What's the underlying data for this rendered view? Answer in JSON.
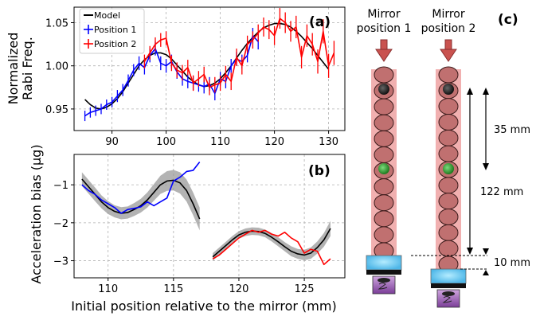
{
  "figure": {
    "panel_a_label": "(a)",
    "panel_b_label": "(b)",
    "panel_c_label": "(c)",
    "shared_xlabel": "Initial position relative to the mirror (mm)"
  },
  "chart_data": [
    {
      "type": "line",
      "panel": "(a)",
      "ylabel_line1": "Normalized",
      "ylabel_line2": "Rabi Freq.",
      "xlim": [
        83,
        133
      ],
      "ylim": [
        0.925,
        1.068
      ],
      "xticks": [
        90,
        100,
        110,
        120,
        130
      ],
      "yticks": [
        0.95,
        1.0,
        1.05
      ],
      "ytick_labels": [
        "0.95",
        "1.00",
        "1.05"
      ],
      "grid": true,
      "legend": {
        "placement": "top-left",
        "entries": [
          "Model",
          "Position 1",
          "Position 2"
        ]
      },
      "series": [
        {
          "name": "Model",
          "color": "#000000",
          "style": "line",
          "x": [
            85,
            86,
            87,
            88,
            89,
            90,
            91,
            92,
            93,
            94,
            95,
            96,
            97,
            98,
            99,
            100,
            101,
            102,
            103,
            104,
            105,
            106,
            107,
            108,
            109,
            110,
            111,
            112,
            113,
            114,
            115,
            116,
            117,
            118,
            119,
            120,
            121,
            122,
            123,
            124,
            125,
            126,
            127,
            128,
            129,
            130
          ],
          "y": [
            0.961,
            0.955,
            0.951,
            0.95,
            0.952,
            0.956,
            0.962,
            0.97,
            0.98,
            0.99,
            1.0,
            1.007,
            1.012,
            1.015,
            1.015,
            1.013,
            1.008,
            1.001,
            0.994,
            0.987,
            0.982,
            0.978,
            0.976,
            0.977,
            0.98,
            0.985,
            0.992,
            1.0,
            1.009,
            1.018,
            1.026,
            1.033,
            1.039,
            1.044,
            1.047,
            1.049,
            1.049,
            1.048,
            1.045,
            1.04,
            1.034,
            1.027,
            1.02,
            1.012,
            1.004,
            0.996
          ]
        },
        {
          "name": "Position 1",
          "color": "#0000ff",
          "style": "errorbar",
          "x": [
            85,
            86,
            87,
            88,
            89,
            90,
            91,
            92,
            93,
            94,
            95,
            96,
            97,
            98,
            99,
            100,
            101,
            102,
            103,
            104,
            105,
            106,
            107,
            108,
            109,
            110,
            111,
            112,
            113,
            114,
            115,
            116,
            117
          ],
          "y": [
            0.942,
            0.946,
            0.948,
            0.95,
            0.955,
            0.958,
            0.965,
            0.972,
            0.983,
            0.995,
            1.003,
            0.998,
            1.012,
            1.02,
            1.003,
            1.0,
            1.005,
            0.993,
            0.985,
            0.982,
            0.98,
            0.978,
            0.976,
            0.979,
            0.968,
            0.985,
            0.982,
            1.0,
            1.008,
            1.005,
            1.012,
            1.035,
            1.028
          ],
          "err": [
            0.006,
            0.006,
            0.006,
            0.006,
            0.006,
            0.006,
            0.007,
            0.007,
            0.007,
            0.007,
            0.008,
            0.008,
            0.008,
            0.008,
            0.008,
            0.008,
            0.008,
            0.008,
            0.008,
            0.008,
            0.008,
            0.008,
            0.008,
            0.008,
            0.008,
            0.008,
            0.008,
            0.008,
            0.008,
            0.008,
            0.008,
            0.009,
            0.009
          ]
        },
        {
          "name": "Position 2",
          "color": "#ff0000",
          "style": "errorbar",
          "x": [
            96,
            97,
            98,
            99,
            100,
            101,
            102,
            103,
            104,
            105,
            106,
            107,
            108,
            109,
            110,
            111,
            112,
            113,
            114,
            115,
            116,
            117,
            118,
            119,
            120,
            121,
            122,
            123,
            124,
            125,
            126,
            127,
            128,
            129,
            130,
            131
          ],
          "y": [
            1.005,
            1.015,
            1.025,
            1.03,
            1.032,
            1.003,
            0.995,
            0.992,
            0.998,
            0.98,
            0.985,
            0.99,
            0.975,
            0.978,
            0.98,
            0.99,
            0.982,
            1.01,
            1.0,
            1.025,
            1.03,
            1.038,
            1.045,
            1.042,
            1.035,
            1.055,
            1.05,
            1.04,
            1.045,
            1.01,
            1.035,
            1.025,
            1.005,
            1.04,
            1.0,
            1.015
          ],
          "err": [
            0.008,
            0.008,
            0.008,
            0.008,
            0.008,
            0.009,
            0.009,
            0.009,
            0.009,
            0.009,
            0.009,
            0.009,
            0.009,
            0.009,
            0.009,
            0.01,
            0.01,
            0.01,
            0.01,
            0.01,
            0.01,
            0.01,
            0.011,
            0.011,
            0.011,
            0.012,
            0.012,
            0.012,
            0.013,
            0.013,
            0.013,
            0.013,
            0.014,
            0.014,
            0.014,
            0.014
          ]
        }
      ]
    },
    {
      "type": "line",
      "panel": "(b)",
      "ylabel": "Acceleration bias (µg)",
      "xlim": [
        107.4,
        128.1
      ],
      "ylim": [
        -3.45,
        -0.2
      ],
      "xticks": [
        110,
        115,
        120,
        125
      ],
      "yticks": [
        -1,
        -2,
        -3
      ],
      "ytick_labels": [
        "−1",
        "−2",
        "−3"
      ],
      "grid": true,
      "series": [
        {
          "name": "Model segment 1",
          "color": "#000000",
          "band_color": "#999999",
          "style": "line-with-band",
          "x": [
            108,
            108.5,
            109,
            109.5,
            110,
            110.5,
            111,
            111.5,
            112,
            112.5,
            113,
            113.5,
            114,
            114.5,
            115,
            115.5,
            116,
            116.5,
            117
          ],
          "y": [
            -0.85,
            -1.05,
            -1.25,
            -1.45,
            -1.6,
            -1.7,
            -1.75,
            -1.73,
            -1.65,
            -1.55,
            -1.4,
            -1.2,
            -1.0,
            -0.9,
            -0.88,
            -0.95,
            -1.15,
            -1.5,
            -1.9
          ],
          "band_halfwidth": [
            0.18,
            0.18,
            0.18,
            0.17,
            0.17,
            0.16,
            0.16,
            0.16,
            0.17,
            0.18,
            0.2,
            0.22,
            0.24,
            0.26,
            0.27,
            0.28,
            0.29,
            0.3,
            0.3
          ]
        },
        {
          "name": "Measured segment 1",
          "color": "#0000ff",
          "style": "line",
          "x": [
            108,
            108.5,
            109,
            109.5,
            110,
            110.5,
            111,
            111.5,
            112,
            112.5,
            113,
            113.5,
            114,
            114.5,
            115,
            115.5,
            116,
            116.5,
            117
          ],
          "y": [
            -1.0,
            -1.15,
            -1.25,
            -1.4,
            -1.5,
            -1.6,
            -1.75,
            -1.65,
            -1.62,
            -1.58,
            -1.45,
            -1.55,
            -1.45,
            -1.35,
            -0.9,
            -0.8,
            -0.65,
            -0.62,
            -0.4
          ]
        },
        {
          "name": "Model segment 2",
          "color": "#000000",
          "band_color": "#999999",
          "style": "line-with-band",
          "x": [
            118,
            118.5,
            119,
            119.5,
            120,
            120.5,
            121,
            121.5,
            122,
            122.5,
            123,
            123.5,
            124,
            124.5,
            125,
            125.5,
            126,
            126.5,
            127
          ],
          "y": [
            -2.9,
            -2.75,
            -2.6,
            -2.45,
            -2.32,
            -2.25,
            -2.22,
            -2.23,
            -2.28,
            -2.38,
            -2.5,
            -2.63,
            -2.75,
            -2.82,
            -2.85,
            -2.8,
            -2.65,
            -2.45,
            -2.15
          ],
          "band_halfwidth": [
            0.1,
            0.1,
            0.1,
            0.1,
            0.1,
            0.1,
            0.1,
            0.1,
            0.1,
            0.11,
            0.12,
            0.12,
            0.13,
            0.13,
            0.14,
            0.15,
            0.16,
            0.18,
            0.2
          ]
        },
        {
          "name": "Measured segment 2",
          "color": "#ff0000",
          "style": "line",
          "x": [
            118,
            118.5,
            119,
            119.5,
            120,
            120.5,
            121,
            121.5,
            122,
            122.5,
            123,
            123.5,
            124,
            124.5,
            125,
            125.5,
            126,
            126.5,
            127
          ],
          "y": [
            -2.95,
            -2.85,
            -2.7,
            -2.55,
            -2.4,
            -2.3,
            -2.2,
            -2.25,
            -2.2,
            -2.3,
            -2.35,
            -2.25,
            -2.4,
            -2.5,
            -2.8,
            -2.7,
            -2.75,
            -3.1,
            -2.95
          ]
        }
      ]
    }
  ],
  "diagram_c": {
    "column_1": {
      "label_line1": "Mirror",
      "label_line2": "position 1"
    },
    "column_2": {
      "label_line1": "Mirror",
      "label_line2": "position 2"
    },
    "tube_color": "#f1b0b0",
    "atom_color": "#c07070",
    "arrow_color": "#c9524f",
    "marker_top_color": "#222222",
    "marker_mid_color": "#2f9e2f",
    "mirror_color": "#4fb7e8",
    "dimension_1": "35 mm",
    "dimension_2": "122 mm",
    "dimension_3": "10 mm",
    "spacing_lower_marker_mm": 122,
    "spacing_upper_marker_mm": 35,
    "mirror_offset_mm": 10
  }
}
